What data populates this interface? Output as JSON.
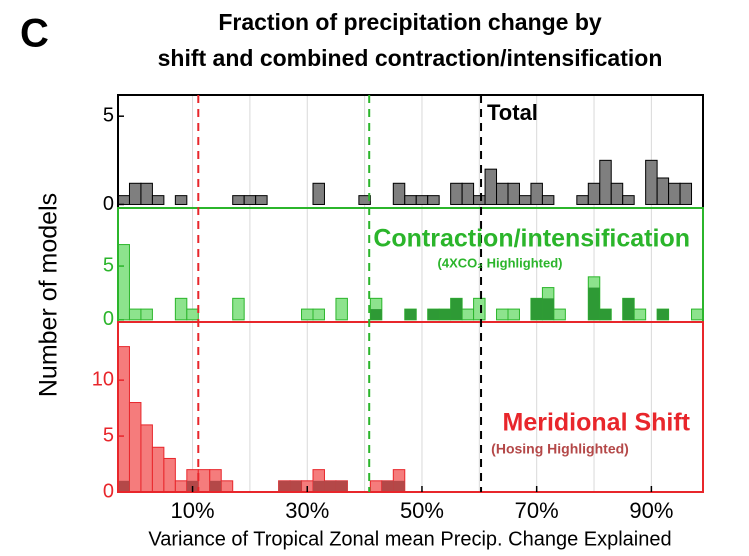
{
  "chart_data": [
    {
      "type": "histogram",
      "panel_label": "C",
      "title": [
        "Fraction of precipitation change by",
        "shift and combined contraction/intensification"
      ],
      "label": "Total",
      "bins": [
        -3,
        -1,
        1,
        3,
        5,
        7,
        9,
        11,
        13,
        15,
        17,
        19,
        21,
        23,
        25,
        27,
        29,
        31,
        33,
        35,
        37,
        39,
        41,
        43,
        45,
        47,
        49,
        51,
        53,
        55,
        57,
        59,
        61,
        63,
        65,
        67,
        69,
        71,
        73,
        75,
        77,
        79,
        81,
        83,
        85,
        87,
        89,
        91,
        93,
        95,
        97,
        99
      ],
      "series": [
        {
          "color": "#7f7f7f",
          "values": [
            0.5,
            1.2,
            1.2,
            0.5,
            0,
            0.5,
            0,
            0,
            0,
            0,
            0.5,
            0.5,
            0.5,
            0,
            0,
            0,
            0,
            1.2,
            0,
            0,
            0,
            0.5,
            0,
            0,
            1.2,
            0.5,
            0.5,
            0.5,
            0,
            1.2,
            1.2,
            0.5,
            2,
            1.2,
            1.2,
            0.5,
            1.2,
            0.5,
            0,
            0,
            0.5,
            1.2,
            2.5,
            1.2,
            0.5,
            0,
            2.5,
            1.5,
            1.2,
            1.2,
            0
          ]
        }
      ],
      "frame_color": "#000000",
      "ylim": [
        -0.2,
        6.2
      ],
      "yticks": [
        0,
        5
      ],
      "vlines": [
        {
          "value": 11,
          "color": "#e8262b"
        },
        {
          "value": 40.8,
          "color": "#2bb52b"
        },
        {
          "value": 60.3,
          "color": "#000000"
        }
      ]
    },
    {
      "type": "histogram",
      "ylabel": "Number of models",
      "label": "Contraction/intensification",
      "sublabel": "(4XCO₂ Highlighted)",
      "bins": [
        -3,
        -1,
        1,
        3,
        5,
        7,
        9,
        11,
        13,
        15,
        17,
        19,
        21,
        23,
        25,
        27,
        29,
        31,
        33,
        35,
        37,
        39,
        41,
        43,
        45,
        47,
        49,
        51,
        53,
        55,
        57,
        59,
        61,
        63,
        65,
        67,
        69,
        71,
        73,
        75,
        77,
        79,
        81,
        83,
        85,
        87,
        89,
        91,
        93,
        95,
        97,
        99
      ],
      "series": [
        {
          "color": "#8de38d",
          "values": [
            7,
            1,
            1,
            0,
            0,
            2,
            1,
            0,
            0,
            0,
            2,
            0,
            0,
            0,
            0,
            0,
            1,
            1,
            0,
            2,
            0,
            0,
            2,
            0,
            0,
            1,
            0,
            1,
            1,
            2,
            1,
            2,
            0,
            1,
            1,
            0,
            2,
            3,
            1,
            0,
            0,
            4,
            1,
            0,
            2,
            1,
            0,
            1,
            0,
            0,
            1
          ]
        },
        {
          "color": "#2e9a35",
          "values": [
            0,
            0,
            0,
            0,
            0,
            0,
            0,
            0,
            0,
            0,
            0,
            0,
            0,
            0,
            0,
            0,
            0,
            0,
            0,
            0,
            0,
            0,
            1,
            0,
            0,
            1,
            0,
            1,
            1,
            2,
            0,
            0,
            0,
            0,
            0,
            0,
            2,
            2,
            0,
            0,
            0,
            3,
            1,
            0,
            2,
            0,
            0,
            1,
            0,
            0,
            0
          ]
        }
      ],
      "frame_color": "#2bb52b",
      "ylim": [
        -0.2,
        10.4
      ],
      "yticks": [
        0,
        5
      ]
    },
    {
      "type": "histogram",
      "label": "Meridional Shift",
      "sublabel": "(Hosing Highlighted)",
      "xlabel": "Variance of Tropical Zonal mean Precip. Change Explained",
      "bins": [
        -3,
        -1,
        1,
        3,
        5,
        7,
        9,
        11,
        13,
        15,
        17,
        19,
        21,
        23,
        25,
        27,
        29,
        31,
        33,
        35,
        37,
        39,
        41,
        43,
        45,
        47,
        49,
        51,
        53,
        55,
        57,
        59,
        61,
        63,
        65,
        67,
        69,
        71,
        73,
        75,
        77,
        79,
        81,
        83,
        85,
        87,
        89,
        91,
        93,
        95,
        97,
        99
      ],
      "series": [
        {
          "color": "#f57c7c",
          "values": [
            13,
            8,
            6,
            4,
            3,
            1,
            2,
            2,
            2,
            1,
            0,
            0,
            0,
            0,
            1,
            1,
            1,
            2,
            1,
            1,
            0,
            0,
            1,
            1,
            2,
            0,
            0,
            0,
            0,
            0,
            0,
            0,
            0,
            0,
            0,
            0,
            0,
            0,
            0,
            0,
            0,
            0,
            0,
            0,
            0,
            0,
            0,
            0,
            0,
            0,
            0
          ]
        },
        {
          "color": "#b44848",
          "values": [
            1,
            0,
            0,
            0,
            0,
            0,
            1,
            0,
            1,
            0,
            0,
            0,
            0,
            0,
            1,
            1,
            0,
            1,
            1,
            1,
            0,
            0,
            0,
            1,
            1,
            0,
            0,
            0,
            0,
            0,
            0,
            0,
            0,
            0,
            0,
            0,
            0,
            0,
            0,
            0,
            0,
            0,
            0,
            0,
            0,
            0,
            0,
            0,
            0,
            0,
            0
          ]
        }
      ],
      "frame_color": "#e8262b",
      "xlim": [
        -3,
        99
      ],
      "xticks": [
        {
          "value": 10,
          "label": "10%"
        },
        {
          "value": 30,
          "label": "30%"
        },
        {
          "value": 50,
          "label": "50%"
        },
        {
          "value": 70,
          "label": "70%"
        },
        {
          "value": 90,
          "label": "90%"
        }
      ],
      "xgrid": [
        10,
        20,
        30,
        40,
        50,
        60,
        70,
        80,
        90
      ],
      "ylim": [
        0,
        15.2
      ],
      "yticks": [
        0,
        5,
        10
      ]
    }
  ]
}
